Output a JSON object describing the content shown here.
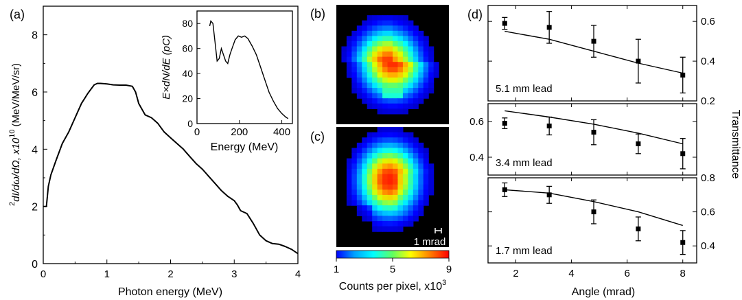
{
  "chart_data": [
    {
      "panel": "a",
      "type": "line",
      "panel_label": "(a)",
      "xlabel": "Photon energy (MeV)",
      "ylabel_main": "I/dω/dΩ, x10",
      "ylabel_sup": "d",
      "ylabel_exp": "10",
      "ylabel_unit": "(MeV/MeV/sr)",
      "xlim": [
        0,
        4
      ],
      "ylim": [
        0,
        9
      ],
      "xticks": [
        "0",
        "1",
        "2",
        "3",
        "4"
      ],
      "yticks": [
        "0",
        "2",
        "4",
        "6",
        "8"
      ],
      "series": [
        {
          "x": [
            0.0,
            0.05,
            0.08,
            0.12,
            0.2,
            0.3,
            0.4,
            0.5,
            0.6,
            0.7,
            0.8,
            0.85,
            0.9,
            1.0,
            1.1,
            1.2,
            1.3,
            1.4,
            1.45,
            1.5,
            1.6,
            1.7,
            1.8,
            1.9,
            2.0,
            2.1,
            2.2,
            2.3,
            2.4,
            2.5,
            2.6,
            2.7,
            2.8,
            2.9,
            3.0,
            3.05,
            3.1,
            3.2,
            3.3,
            3.4,
            3.5,
            3.6,
            3.7,
            3.8,
            3.9,
            4.0
          ],
          "y": [
            2.0,
            2.0,
            2.7,
            3.1,
            3.6,
            4.2,
            4.6,
            5.1,
            5.6,
            5.95,
            6.25,
            6.3,
            6.3,
            6.28,
            6.25,
            6.24,
            6.24,
            6.2,
            6.0,
            5.6,
            5.2,
            5.1,
            4.9,
            4.6,
            4.4,
            4.2,
            4.0,
            3.75,
            3.5,
            3.3,
            3.05,
            2.8,
            2.55,
            2.35,
            2.2,
            2.05,
            1.85,
            1.75,
            1.4,
            1.0,
            0.8,
            0.7,
            0.68,
            0.6,
            0.5,
            0.35
          ]
        }
      ],
      "inset": {
        "type": "line",
        "xlabel": "Energy (MeV)",
        "ylabel": "E×dN/dE (pC)",
        "xlim": [
          0,
          450
        ],
        "ylim": [
          0,
          90
        ],
        "xticks": [
          "0",
          "200",
          "400"
        ],
        "yticks": [
          "0",
          "20",
          "40",
          "60",
          "80"
        ],
        "x": [
          60,
          65,
          75,
          85,
          95,
          105,
          115,
          125,
          135,
          145,
          155,
          165,
          180,
          195,
          210,
          225,
          240,
          260,
          280,
          300,
          320,
          340,
          360,
          380,
          400,
          420,
          430
        ],
        "y": [
          78,
          82,
          80,
          65,
          50,
          52,
          60,
          55,
          50,
          48,
          55,
          60,
          67,
          70,
          69,
          70,
          68,
          62,
          55,
          45,
          35,
          25,
          18,
          12,
          8,
          5,
          4
        ]
      }
    },
    {
      "panel": "b",
      "type": "heatmap",
      "panel_label": "(b)"
    },
    {
      "panel": "c",
      "type": "heatmap",
      "panel_label": "(c)",
      "scale_label": "1 mrad"
    },
    {
      "panel": "colorbar",
      "type": "heatmap",
      "ticks": [
        "1",
        "5",
        "9"
      ],
      "label": "Counts per pixel, x10",
      "label_exp": "3",
      "colors": [
        "#0000ff",
        "#00a0ff",
        "#00ffff",
        "#60ff60",
        "#ffff00",
        "#ff8000",
        "#ff0000"
      ]
    },
    {
      "panel": "d",
      "type": "scatter",
      "panel_label": "(d)",
      "xlabel": "Angle (mrad)",
      "ylabel_right": "Transmittance",
      "xlim": [
        1,
        8.5
      ],
      "xticks": [
        "2",
        "4",
        "6",
        "8"
      ],
      "subpanels": [
        {
          "label": "5.1 mm lead",
          "ylim": [
            0.2,
            0.68
          ],
          "yticks": [
            "0.2",
            "0.4",
            "0.6"
          ],
          "points": {
            "x": [
              1.6,
              3.2,
              4.8,
              6.4,
              8.0
            ],
            "y": [
              0.59,
              0.57,
              0.5,
              0.4,
              0.33
            ],
            "err": [
              0.03,
              0.08,
              0.08,
              0.11,
              0.09
            ]
          },
          "fit": {
            "x": [
              1.6,
              3.2,
              4.8,
              6.4,
              8.0
            ],
            "y": [
              0.55,
              0.51,
              0.45,
              0.39,
              0.34
            ]
          }
        },
        {
          "label": "3.4 mm lead",
          "ylim": [
            0.3,
            0.7
          ],
          "yticks": [
            "0.4",
            "0.6"
          ],
          "points": {
            "x": [
              1.6,
              3.2,
              4.8,
              6.4,
              8.0
            ],
            "y": [
              0.59,
              0.575,
              0.54,
              0.475,
              0.42
            ],
            "err": [
              0.03,
              0.05,
              0.07,
              0.055,
              0.085
            ]
          },
          "fit": {
            "x": [
              1.6,
              3.2,
              4.8,
              6.4,
              8.0
            ],
            "y": [
              0.66,
              0.625,
              0.585,
              0.535,
              0.475
            ]
          }
        },
        {
          "label": "1.7 mm lead",
          "ylim": [
            0.3,
            0.8
          ],
          "yticks": [
            "0.4",
            "0.6",
            "0.8"
          ],
          "points": {
            "x": [
              1.6,
              3.2,
              4.8,
              6.4,
              8.0
            ],
            "y": [
              0.73,
              0.7,
              0.6,
              0.5,
              0.42
            ],
            "err": [
              0.04,
              0.05,
              0.07,
              0.07,
              0.07
            ]
          },
          "fit": {
            "x": [
              1.6,
              3.2,
              4.8,
              6.4,
              8.0
            ],
            "y": [
              0.73,
              0.71,
              0.66,
              0.6,
              0.52
            ]
          }
        }
      ]
    }
  ]
}
